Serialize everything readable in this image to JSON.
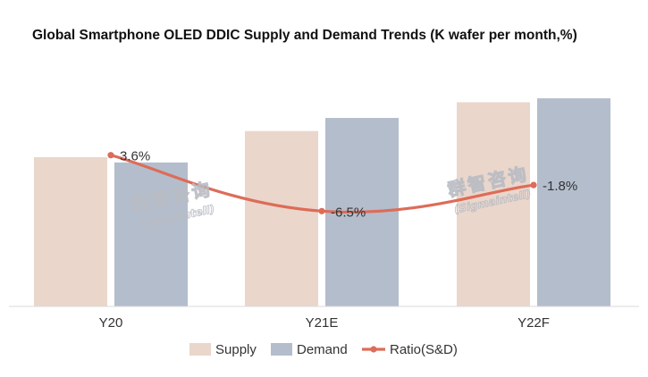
{
  "chart_data": {
    "type": "bar",
    "title": "Global Smartphone OLED DDIC Supply and Demand Trends (K wafer per month,%)",
    "categories": [
      "Y20",
      "Y21E",
      "Y22F"
    ],
    "ylim": [
      0,
      100
    ],
    "series": [
      {
        "name": "Supply",
        "type": "bar",
        "color": "#ead6cb",
        "values": [
          57,
          67,
          78
        ]
      },
      {
        "name": "Demand",
        "type": "bar",
        "color": "#b4bdcc",
        "values": [
          55,
          72,
          79.5
        ]
      }
    ],
    "line_series": {
      "name": "Ratio(S&D)",
      "type": "line",
      "color": "#dd6c58",
      "values": [
        3.6,
        -6.5,
        -1.8
      ],
      "labels": [
        "3.6%",
        "-6.5%",
        "-1.8%"
      ],
      "ylim": [
        -10,
        10
      ]
    },
    "legend": {
      "position": "bottom",
      "items": [
        "Supply",
        "Demand",
        "Ratio(S&D)"
      ]
    },
    "grid": false
  },
  "watermark": {
    "cn": "群智咨询",
    "en": "(Sigmaintell)"
  }
}
